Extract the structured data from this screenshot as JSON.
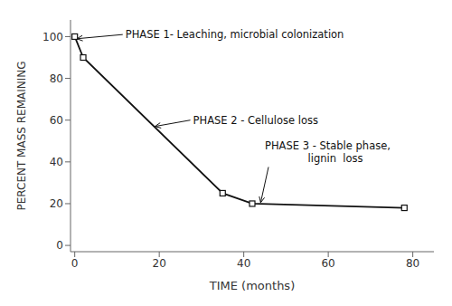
{
  "chart_data": {
    "type": "line",
    "x": [
      0,
      2,
      35,
      42,
      78
    ],
    "values": [
      100,
      90,
      25,
      20,
      18
    ],
    "color": "#111111",
    "marker": "square",
    "xlabel": "TIME (months)",
    "ylabel": "PERCENT MASS REMAINING",
    "xlim": [
      -1,
      85
    ],
    "ylim": [
      -3,
      108
    ],
    "xticks": [
      0,
      20,
      40,
      60,
      80
    ],
    "yticks": [
      0,
      20,
      40,
      60,
      80,
      100
    ],
    "grid": false,
    "annotations": [
      {
        "text": "PHASE 1- Leaching, microbial colonization",
        "xy": [
          0.5,
          99
        ],
        "xytext": [
          12,
          101
        ]
      },
      {
        "text": "PHASE 2 - Cellulose loss",
        "xy": [
          19,
          57
        ],
        "xytext": [
          28,
          60
        ]
      },
      {
        "text": "PHASE 3 - Stable phase,\n             lignin  loss",
        "xy": [
          44,
          20.5
        ],
        "xytext": [
          45,
          38
        ]
      }
    ]
  }
}
